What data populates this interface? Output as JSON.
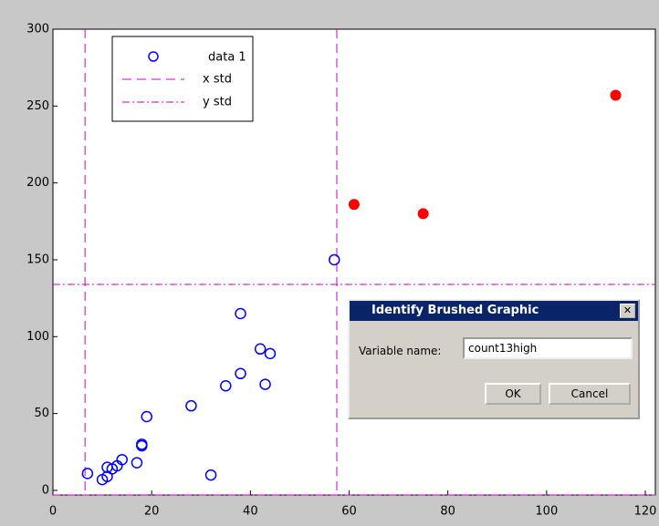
{
  "chart_data": {
    "type": "scatter",
    "series": [
      {
        "name": "data 1",
        "color": "#0000ff",
        "x": [
          7,
          10,
          11,
          11,
          12,
          13,
          14,
          17,
          18,
          18,
          19,
          28,
          32,
          35,
          38,
          38,
          42,
          43,
          44,
          57
        ],
        "y": [
          11,
          7,
          9,
          15,
          14,
          16,
          20,
          18,
          29,
          30,
          48,
          55,
          10,
          68,
          76,
          115,
          92,
          69,
          89,
          150
        ]
      }
    ],
    "brushed": {
      "color": "#ff0000",
      "x": [
        61,
        75,
        114
      ],
      "y": [
        186,
        180,
        257
      ]
    },
    "x_std": {
      "name": "x std",
      "color": "#cc00cc",
      "values": [
        6.5,
        57.5
      ]
    },
    "y_std": {
      "name": "y std",
      "color": "#cc00cc",
      "values": [
        134,
        -3
      ]
    },
    "xlim": [
      0,
      120
    ],
    "xticks": [
      0,
      20,
      40,
      60,
      80,
      100,
      120
    ],
    "ylim": [
      -3,
      300
    ],
    "yticks": [
      0,
      50,
      100,
      150,
      200,
      250,
      300
    ]
  },
  "dialog": {
    "title": "Identify Brushed Graphic",
    "label": "Variable name:",
    "value": "count13high",
    "ok": "OK",
    "cancel": "Cancel"
  }
}
